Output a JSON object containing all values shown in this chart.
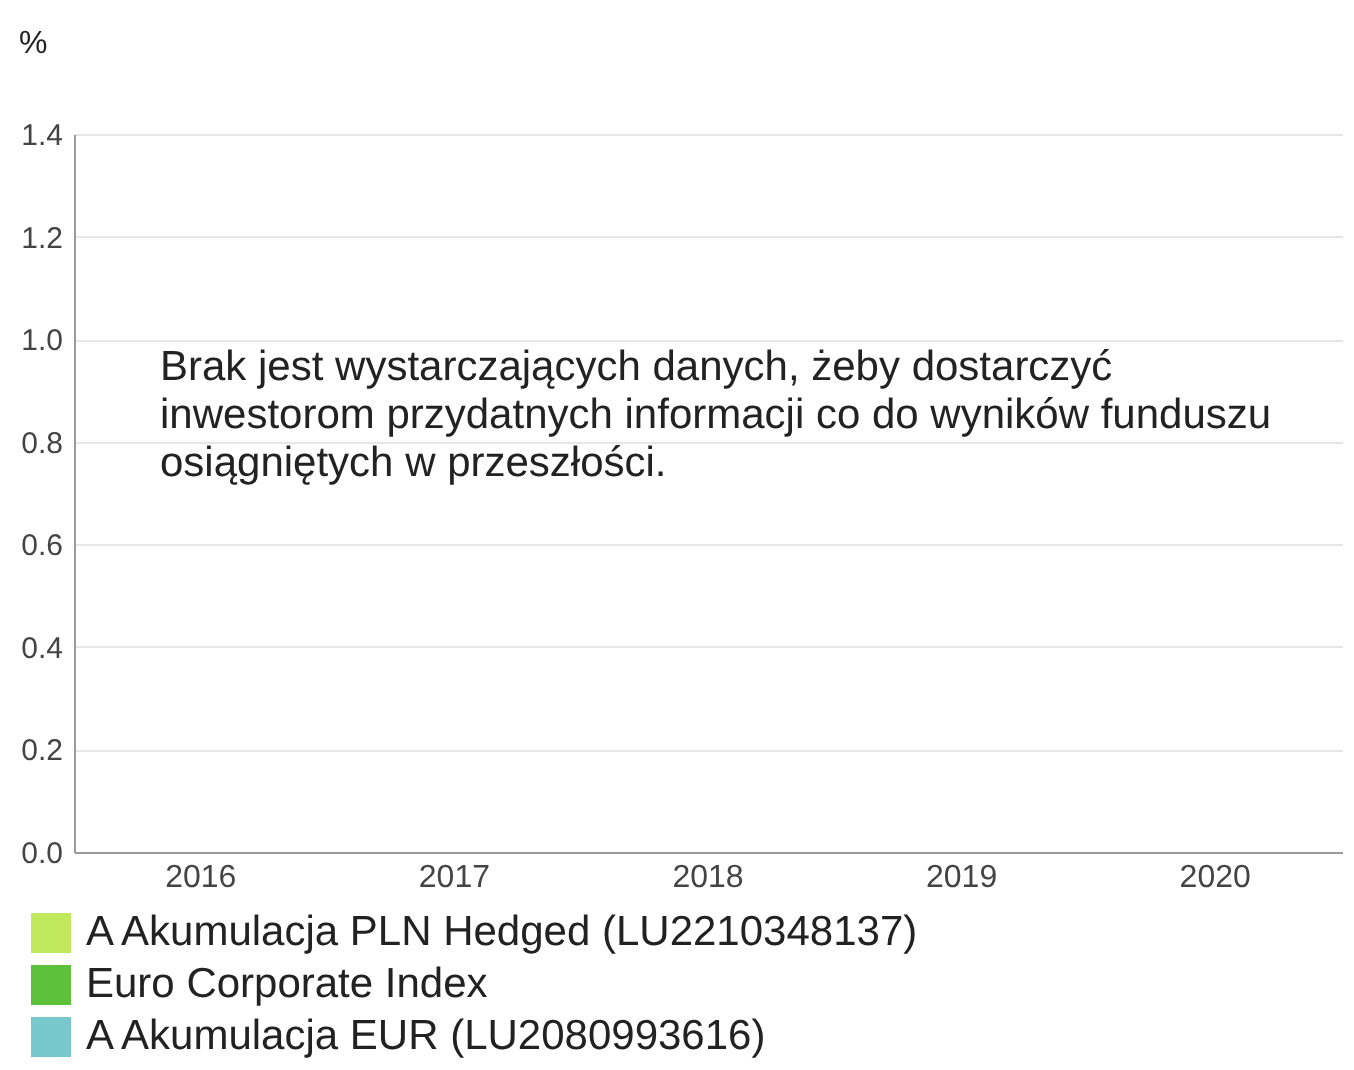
{
  "chart_data": {
    "type": "bar",
    "ylabel": "%",
    "annotations": [
      "Brak jest wystarczających danych, żeby dostarczyć inwestorom przydatnych informacji co do wyników funduszu osiągniętych w przeszłości."
    ],
    "categories": [
      "2016",
      "2017",
      "2018",
      "2019",
      "2020"
    ],
    "series": [
      {
        "name": "A Akumulacja PLN Hedged (LU2210348137)",
        "color": "#bfe85c",
        "values": [
          null,
          null,
          null,
          null,
          null
        ]
      },
      {
        "name": "Euro Corporate Index",
        "color": "#5dc23a",
        "values": [
          null,
          null,
          null,
          null,
          null
        ]
      },
      {
        "name": "A Akumulacja EUR (LU2080993616)",
        "color": "#77c7cc",
        "values": [
          null,
          null,
          null,
          null,
          null
        ]
      }
    ],
    "ylim": [
      0,
      1.4
    ],
    "yticks": [
      {
        "value": 0,
        "label": "0.0"
      },
      0.2,
      0.4,
      0.6,
      0.8,
      {
        "value": 1,
        "label": "1.0"
      },
      1.2,
      1.4
    ],
    "grid": "y",
    "legend": "bottom"
  }
}
